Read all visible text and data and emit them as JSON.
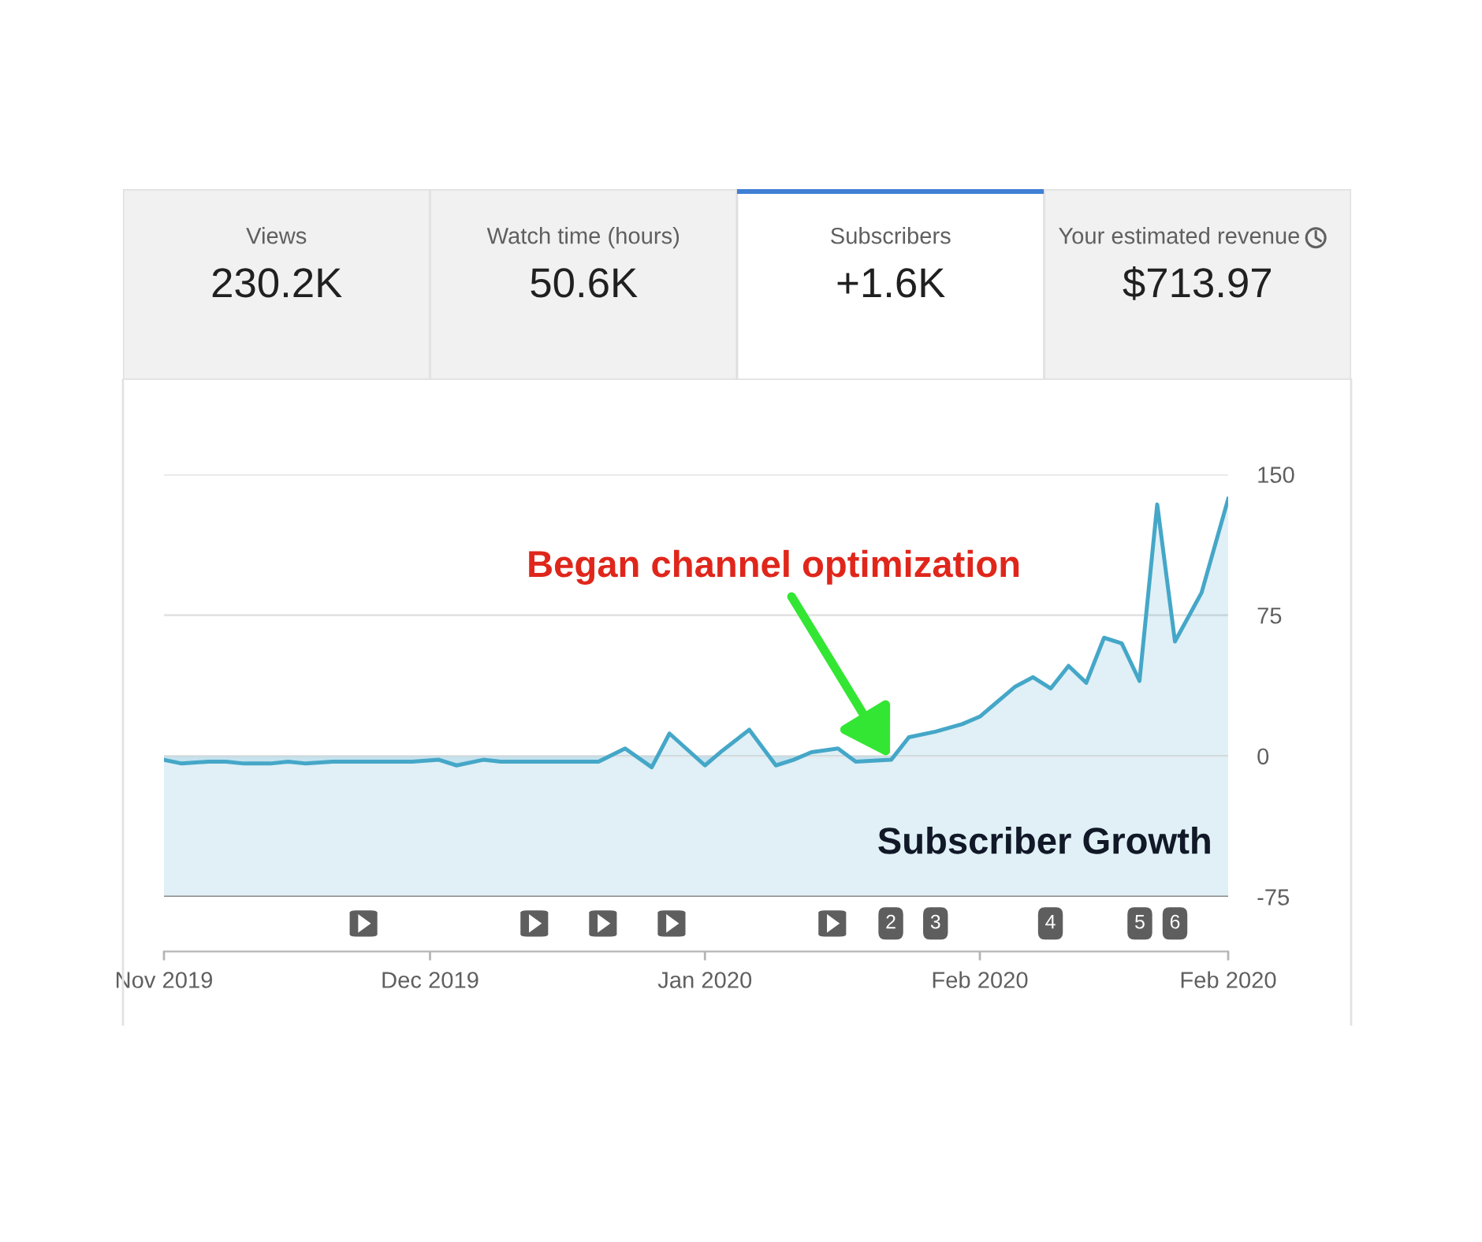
{
  "chart_data": [
    {
      "type": "other",
      "title": "Views",
      "annotations": [
        "230.2K"
      ]
    },
    {
      "type": "other",
      "title": "Watch time (hours)",
      "annotations": [
        "50.6K"
      ]
    },
    {
      "type": "other",
      "title": "Subscribers",
      "annotations": [
        "+1.6K"
      ]
    },
    {
      "type": "other",
      "title": "Your estimated revenue",
      "annotations": [
        "$713.97"
      ]
    },
    {
      "type": "area",
      "x": [
        "2019-11-01",
        "2019-11-03",
        "2019-11-06",
        "2019-11-08",
        "2019-11-10",
        "2019-11-13",
        "2019-11-15",
        "2019-11-17",
        "2019-11-20",
        "2019-11-22",
        "2019-11-24",
        "2019-11-27",
        "2019-11-29",
        "2019-12-02",
        "2019-12-04",
        "2019-12-07",
        "2019-12-09",
        "2019-12-12",
        "2019-12-14",
        "2019-12-17",
        "2019-12-20",
        "2019-12-23",
        "2019-12-26",
        "2019-12-28",
        "2020-01-01",
        "2020-01-03",
        "2020-01-06",
        "2020-01-09",
        "2020-01-11",
        "2020-01-13",
        "2020-01-16",
        "2020-01-18",
        "2020-01-22",
        "2020-01-24",
        "2020-01-27",
        "2020-01-30",
        "2020-02-01",
        "2020-02-03",
        "2020-02-05",
        "2020-02-07",
        "2020-02-09",
        "2020-02-11",
        "2020-02-13",
        "2020-02-15",
        "2020-02-17",
        "2020-02-19",
        "2020-02-21",
        "2020-02-23",
        "2020-02-26",
        "2020-02-29"
      ],
      "series": [
        {
          "color": "#45a7c8",
          "values": [
            -2,
            -4,
            -3,
            -3,
            -4,
            -4,
            -3,
            -4,
            -3,
            -3,
            -3,
            -3,
            -3,
            -2,
            -5,
            -2,
            -3,
            -3,
            -3,
            -3,
            -3,
            4,
            -6,
            12,
            -5,
            3,
            14,
            -5,
            -2,
            2,
            4,
            -3,
            -2,
            10,
            13,
            17,
            21,
            29,
            37,
            42,
            36,
            48,
            39,
            63,
            60,
            40,
            134,
            61,
            87,
            137
          ]
        }
      ],
      "xlim": [
        "2019-11-01",
        "2020-02-29"
      ],
      "xticks": [
        {
          "value": "2019-11-01",
          "label": "Nov 2019"
        },
        {
          "value": "2019-12-01",
          "label": "Dec 2019"
        },
        {
          "value": "2020-01-01",
          "label": "Jan 2020"
        },
        {
          "value": "2020-02-01",
          "label": "Feb 2020"
        },
        {
          "value": "2020-02-29",
          "label": "Feb 2020"
        }
      ],
      "ylim": [
        -75,
        150
      ],
      "yticks": [
        -75,
        0,
        75,
        150
      ],
      "grid": "y",
      "bands": [
        {
          "axis": "y",
          "from": -75,
          "to": 0,
          "color": "#45a7c8"
        }
      ],
      "annotations": [
        {
          "text": "Began channel optimization",
          "x": "2020-01-22",
          "y": -2
        },
        "Subscriber Growth",
        "2",
        "3",
        "4",
        "5",
        "6"
      ]
    }
  ]
}
